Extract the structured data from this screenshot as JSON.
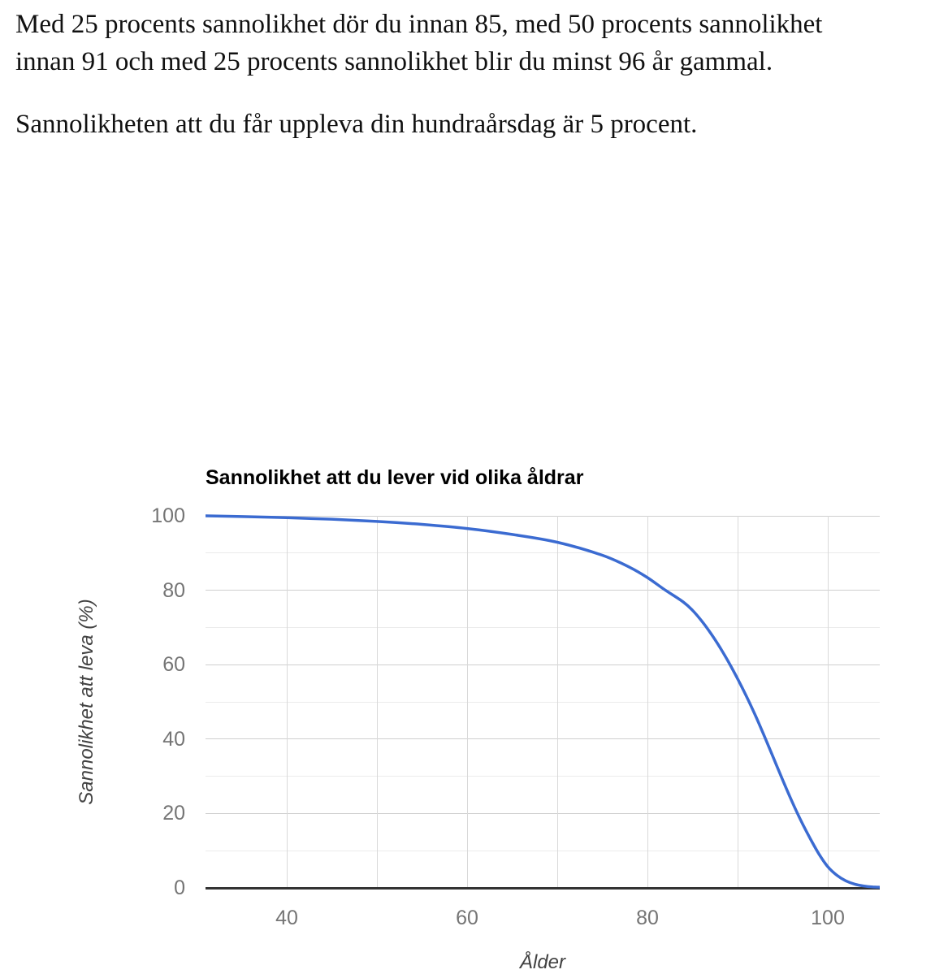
{
  "page": {
    "background": "#ffffff",
    "paragraphs": [
      "Med 25 procents sannolikhet dör du innan 85, med 50 procents sannolikhet\ninnan 91 och med 25 procents sannolikhet blir du minst 96 år gammal.",
      "Sannolikheten att du får uppleva din hundraårsdag är 5 procent."
    ]
  },
  "chart_data": {
    "type": "line",
    "title": "Sannolikhet att du lever vid olika åldrar",
    "xlabel": "Ålder",
    "ylabel": "Sannolikhet att leva (%)",
    "legend": "none",
    "grid": true,
    "xlim": [
      31,
      106
    ],
    "ylim": [
      0,
      100
    ],
    "x_ticks": [
      40,
      60,
      80,
      100
    ],
    "y_ticks": [
      0,
      20,
      40,
      60,
      80,
      100
    ],
    "x_gridlines": [
      40,
      50,
      60,
      70,
      80,
      90,
      100
    ],
    "y_major_gridlines": [
      20,
      40,
      60,
      80,
      100
    ],
    "y_minor_gridlines": [
      10,
      30,
      50,
      70,
      90
    ],
    "series": [
      {
        "name": "Sannolikhet att leva (%)",
        "x": [
          31,
          35,
          40,
          45,
          50,
          55,
          60,
          65,
          70,
          75,
          78,
          80,
          82,
          84,
          85,
          86,
          87,
          88,
          89,
          90,
          91,
          92,
          93,
          94,
          95,
          96,
          97,
          98,
          99,
          100,
          101,
          102,
          103,
          104,
          105,
          106
        ],
        "y": [
          100,
          99.8,
          99.5,
          99.1,
          98.5,
          97.7,
          96.6,
          95.0,
          92.9,
          89.4,
          86.2,
          83.4,
          80.0,
          76.8,
          74.6,
          71.8,
          68.5,
          64.8,
          60.7,
          56.2,
          51.4,
          46.2,
          40.6,
          34.8,
          29.0,
          23.4,
          18.2,
          13.5,
          9.2,
          5.7,
          3.4,
          1.9,
          1.0,
          0.5,
          0.25,
          0.15
        ]
      }
    ],
    "annotations": {
      "survival_at_85": 75,
      "survival_at_91": 50,
      "survival_at_96": 25,
      "survival_at_100": 5
    },
    "colors": {
      "line": "#3b6bd1",
      "major_gridline": "#cfcfcf",
      "minor_gridline": "#ebebeb",
      "vertical_gridline": "#d9d9d9",
      "axis_line": "#333333",
      "tick_label": "#757575",
      "axis_title": "#424242",
      "title": "#000000"
    }
  }
}
